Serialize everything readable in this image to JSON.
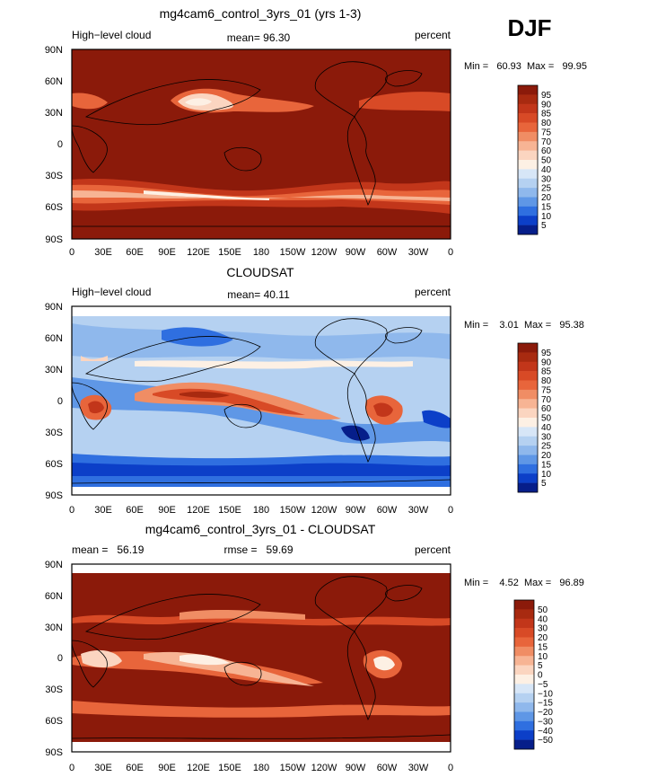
{
  "season": "DJF",
  "panels": [
    {
      "title": "mg4cam6_control_3yrs_01 (yrs 1-3)",
      "left_label": "High−level cloud",
      "center_label": "mean=   96.30",
      "right_label": "percent",
      "stats": "Min =   60.93  Max =   99.95",
      "colorbar_labels": [
        "95",
        "90",
        "85",
        "80",
        "75",
        "70",
        "60",
        "50",
        "40",
        "30",
        "25",
        "20",
        "15",
        "10",
        "5"
      ],
      "colorbar_colors": [
        "#8b1a0a",
        "#a82a10",
        "#c2361a",
        "#d84a26",
        "#e8653b",
        "#f08d64",
        "#f7b494",
        "#fbd5c0",
        "#fdf0e4",
        "#d7e6f7",
        "#b5d1f1",
        "#8fb8ec",
        "#5f97e6",
        "#2f6fe0",
        "#0c3fc8",
        "#061e8a"
      ]
    },
    {
      "title": "CLOUDSAT",
      "left_label": "High−level cloud",
      "center_label": "mean=   40.11",
      "right_label": "percent",
      "stats": "Min =    3.01  Max =   95.38",
      "colorbar_labels": [
        "95",
        "90",
        "85",
        "80",
        "75",
        "70",
        "60",
        "50",
        "40",
        "30",
        "25",
        "20",
        "15",
        "10",
        "5"
      ],
      "colorbar_colors": [
        "#8b1a0a",
        "#a82a10",
        "#c2361a",
        "#d84a26",
        "#e8653b",
        "#f08d64",
        "#f7b494",
        "#fbd5c0",
        "#fdf0e4",
        "#d7e6f7",
        "#b5d1f1",
        "#8fb8ec",
        "#5f97e6",
        "#2f6fe0",
        "#0c3fc8",
        "#061e8a"
      ]
    },
    {
      "title": "mg4cam6_control_3yrs_01 - CLOUDSAT",
      "left_label": "mean =   56.19",
      "center_label": "rmse =   59.69",
      "right_label": "percent",
      "stats": "Min =    4.52  Max =   96.89",
      "colorbar_labels": [
        "50",
        "40",
        "30",
        "20",
        "15",
        "10",
        "5",
        "0",
        "−5",
        "−10",
        "−15",
        "−20",
        "−30",
        "−40",
        "−50"
      ],
      "colorbar_colors": [
        "#8b1a0a",
        "#a82a10",
        "#c2361a",
        "#d84a26",
        "#e8653b",
        "#f08d64",
        "#f7b494",
        "#fbd5c0",
        "#fdf0e4",
        "#d7e6f7",
        "#b5d1f1",
        "#8fb8ec",
        "#5f97e6",
        "#2f6fe0",
        "#0c3fc8",
        "#061e8a"
      ]
    }
  ],
  "chart_data": {
    "type": "heatmap",
    "title": "DJF High-level cloud (percent)",
    "x_ticks": [
      "0",
      "30E",
      "60E",
      "90E",
      "120E",
      "150E",
      "180",
      "150W",
      "120W",
      "90W",
      "60W",
      "30W",
      "0"
    ],
    "y_ticks": [
      "90N",
      "60N",
      "30N",
      "0",
      "30S",
      "60S",
      "90S"
    ],
    "xlim": [
      0,
      360
    ],
    "ylim": [
      -90,
      90
    ],
    "series": [
      {
        "name": "mg4cam6_control_3yrs_01 (yrs 1-3)",
        "mean": 96.3,
        "min": 60.93,
        "max": 99.95,
        "units": "percent"
      },
      {
        "name": "CLOUDSAT",
        "mean": 40.11,
        "min": 3.01,
        "max": 95.38,
        "units": "percent"
      },
      {
        "name": "mg4cam6_control_3yrs_01 - CLOUDSAT",
        "mean": 56.19,
        "rmse": 59.69,
        "min": 4.52,
        "max": 96.89,
        "units": "percent"
      }
    ]
  }
}
